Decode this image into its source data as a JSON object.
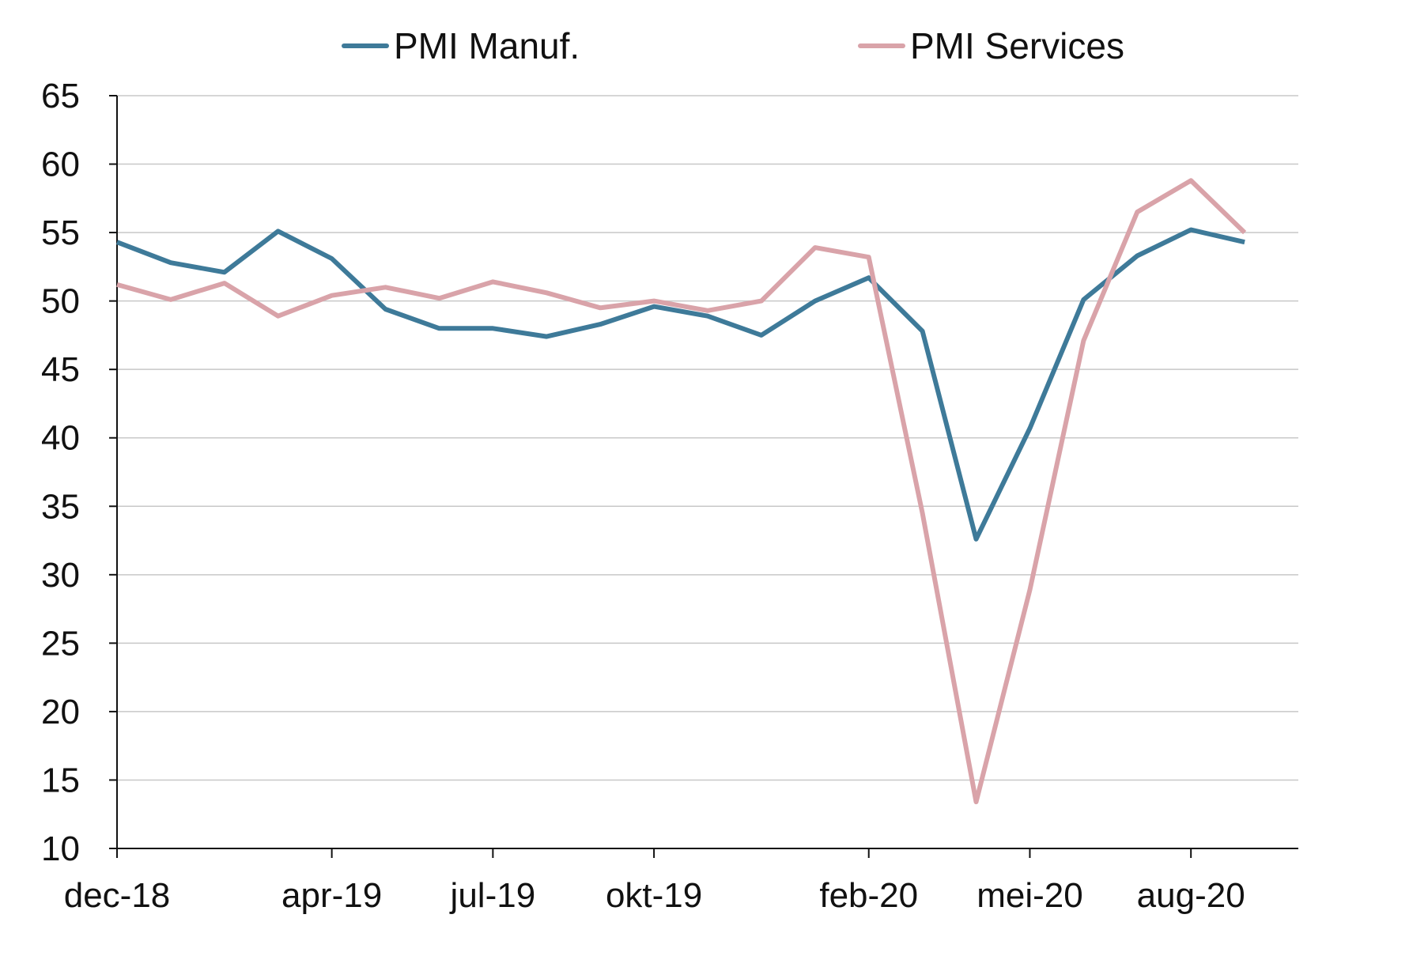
{
  "chart_data": {
    "type": "line",
    "title": "",
    "xlabel": "",
    "ylabel": "",
    "ylim": [
      10,
      65
    ],
    "yticks": [
      10,
      15,
      20,
      25,
      30,
      35,
      40,
      45,
      50,
      55,
      60,
      65
    ],
    "x": [
      "dec-18",
      "jan-19",
      "feb-19",
      "mrt-19",
      "apr-19",
      "mei-19",
      "jun-19",
      "jul-19",
      "aug-19",
      "sep-19",
      "okt-19",
      "nov-19",
      "dec-19",
      "jan-20",
      "feb-20",
      "mrt-20",
      "apr-20",
      "mei-20",
      "jun-20",
      "jul-20",
      "aug-20",
      "sep-20",
      "okt-20"
    ],
    "xtick_labels": [
      "dec-18",
      "apr-19",
      "jul-19",
      "okt-19",
      "feb-20",
      "mei-20",
      "aug-20"
    ],
    "grid": true,
    "legend_position": "top",
    "series": [
      {
        "name": "PMI Manuf.",
        "color": "#3e7a99",
        "values": [
          54.3,
          52.8,
          52.1,
          55.1,
          53.1,
          49.4,
          48.0,
          48.0,
          47.4,
          48.3,
          49.6,
          48.9,
          47.5,
          50.0,
          51.7,
          47.8,
          32.6,
          40.7,
          50.1,
          53.3,
          55.2,
          54.3,
          null
        ]
      },
      {
        "name": "PMI Services",
        "color": "#d9a3a9",
        "values": [
          51.2,
          50.1,
          51.3,
          48.9,
          50.4,
          51.0,
          50.2,
          51.4,
          50.6,
          49.5,
          50.0,
          49.3,
          50.0,
          53.9,
          53.2,
          34.5,
          13.4,
          28.9,
          47.1,
          56.5,
          58.8,
          55.0,
          null
        ]
      }
    ]
  }
}
